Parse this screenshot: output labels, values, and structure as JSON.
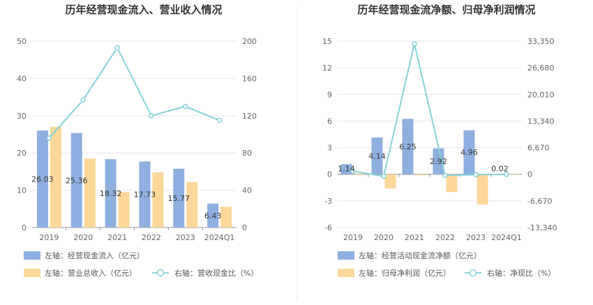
{
  "chart_data": [
    {
      "type": "bar",
      "title": "历年经营现金流入、营业收入情况",
      "categories": [
        "2019",
        "2020",
        "2021",
        "2022",
        "2023",
        "2024Q1"
      ],
      "left_axis": {
        "min": 0,
        "max": 50,
        "ticks": [
          "0",
          "10",
          "20",
          "30",
          "40",
          "50"
        ]
      },
      "right_axis": {
        "min": 0,
        "max": 200,
        "ticks": [
          "0",
          "40",
          "80",
          "120",
          "160",
          "200"
        ]
      },
      "series": [
        {
          "name": "左轴：经营现金流入（亿元）",
          "axis": "left",
          "kind": "bar",
          "color": "#8eb0e0",
          "values": [
            26.03,
            25.36,
            18.32,
            17.73,
            15.77,
            6.43
          ],
          "labels": [
            "26.03",
            "25.36",
            "18.32",
            "17.73",
            "15.77",
            "6.43"
          ]
        },
        {
          "name": "左轴：营业总收入（亿元）",
          "axis": "left",
          "kind": "bar",
          "color": "#fdd89a",
          "values": [
            27.0,
            18.5,
            9.5,
            14.8,
            12.2,
            5.6
          ]
        },
        {
          "name": "右轴：营收现金比（%）",
          "axis": "right",
          "kind": "line",
          "color": "#86d4d8",
          "values": [
            96,
            137,
            193,
            120,
            130,
            115
          ]
        }
      ],
      "legend_position": "bottom",
      "grid": true
    },
    {
      "type": "bar",
      "title": "历年经营现金流净额、归母净利润情况",
      "categories": [
        "2019",
        "2020",
        "2021",
        "2022",
        "2023",
        "2024Q1"
      ],
      "left_axis": {
        "min": -6,
        "max": 15,
        "ticks": [
          "-6",
          "-3",
          "0",
          "3",
          "6",
          "9",
          "12",
          "15"
        ]
      },
      "right_axis": {
        "min": -13340,
        "max": 33350,
        "ticks": [
          "-13,340",
          "-6,670",
          "0",
          "6,670",
          "13,340",
          "20,010",
          "26,680",
          "33,350"
        ]
      },
      "series": [
        {
          "name": "左轴：经营活动现金流净额（亿元）",
          "axis": "left",
          "kind": "bar",
          "color": "#8eb0e0",
          "values": [
            1.14,
            4.14,
            6.25,
            2.92,
            4.96,
            0.02
          ],
          "labels": [
            "1.14",
            "4.14",
            "6.25",
            "2.92",
            "4.96",
            "0.02"
          ]
        },
        {
          "name": "左轴：归母净利润（亿元）",
          "axis": "left",
          "kind": "bar",
          "color": "#fdd89a",
          "values": [
            0.1,
            -1.6,
            -0.1,
            -2.0,
            -3.4,
            0.0
          ]
        },
        {
          "name": "右轴：净现比（%）",
          "axis": "right",
          "kind": "line",
          "color": "#86d4d8",
          "values": [
            800,
            -500,
            32700,
            -300,
            -100,
            0
          ]
        }
      ],
      "legend_position": "bottom",
      "grid": true
    }
  ]
}
